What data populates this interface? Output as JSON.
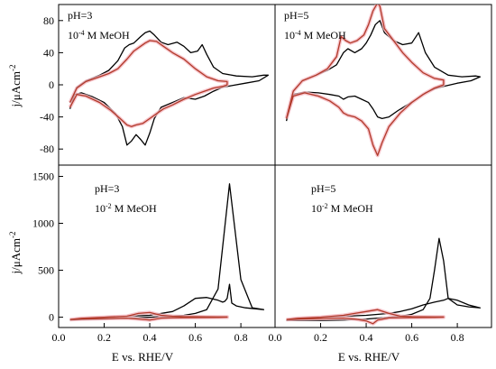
{
  "figure": {
    "ylabel_main": "j/μAcm",
    "ylabel_sup": "-2",
    "xlabel": "E vs. RHE/V"
  },
  "colors": {
    "black": "#000000",
    "red": "#b23a2a",
    "halo": "#f4b6bf"
  },
  "chart_data": [
    {
      "type": "line",
      "panel": "top-left",
      "annotation_line1": "pH=3",
      "annotation_line2_base": "10",
      "annotation_line2_exp": "-4",
      "annotation_line2_rest": " M MeOH",
      "xlim": [
        0.0,
        0.95
      ],
      "ylim": [
        -100,
        100
      ],
      "yticks": [
        -80,
        -40,
        0,
        40,
        80
      ],
      "series": [
        {
          "color": "black",
          "x": [
            0.05,
            0.08,
            0.12,
            0.18,
            0.22,
            0.26,
            0.29,
            0.31,
            0.33,
            0.36,
            0.38,
            0.4,
            0.42,
            0.45,
            0.48,
            0.52,
            0.55,
            0.58,
            0.61,
            0.63,
            0.65,
            0.68,
            0.72,
            0.78,
            0.85,
            0.9,
            0.92,
            0.88,
            0.82,
            0.76,
            0.72,
            0.68,
            0.64,
            0.6,
            0.55,
            0.5,
            0.45,
            0.42,
            0.4,
            0.38,
            0.36,
            0.34,
            0.32,
            0.3,
            0.28,
            0.25,
            0.2,
            0.15,
            0.1,
            0.07,
            0.05
          ],
          "y": [
            -22,
            -3,
            5,
            12,
            18,
            30,
            46,
            50,
            52,
            60,
            65,
            67,
            62,
            53,
            50,
            53,
            48,
            40,
            42,
            50,
            38,
            22,
            14,
            11,
            10,
            12,
            12,
            5,
            2,
            -1,
            -3,
            -8,
            -14,
            -18,
            -16,
            -22,
            -28,
            -42,
            -60,
            -75,
            -68,
            -62,
            -70,
            -75,
            -52,
            -36,
            -22,
            -15,
            -10,
            -12,
            -30
          ],
          "values_note": ""
        },
        {
          "color": "red",
          "x": [
            0.05,
            0.08,
            0.12,
            0.18,
            0.22,
            0.26,
            0.3,
            0.33,
            0.36,
            0.38,
            0.4,
            0.43,
            0.46,
            0.5,
            0.55,
            0.6,
            0.65,
            0.7,
            0.74,
            0.74,
            0.72,
            0.68,
            0.64,
            0.6,
            0.55,
            0.5,
            0.46,
            0.43,
            0.4,
            0.37,
            0.34,
            0.32,
            0.3,
            0.27,
            0.23,
            0.18,
            0.12,
            0.08,
            0.05
          ],
          "y": [
            -22,
            -4,
            4,
            10,
            14,
            20,
            32,
            42,
            48,
            52,
            55,
            54,
            48,
            40,
            32,
            20,
            10,
            5,
            4,
            0,
            -2,
            -4,
            -8,
            -12,
            -18,
            -25,
            -30,
            -36,
            -42,
            -48,
            -50,
            -52,
            -50,
            -42,
            -32,
            -22,
            -14,
            -12,
            -28
          ]
        }
      ]
    },
    {
      "type": "line",
      "panel": "top-right",
      "annotation_line1": "pH=5",
      "annotation_line2_base": "10",
      "annotation_line2_exp": "-4",
      "annotation_line2_rest": " M MeOH",
      "xlim": [
        0.0,
        0.95
      ],
      "ylim": [
        -100,
        100
      ],
      "series": [
        {
          "color": "black",
          "x": [
            0.05,
            0.08,
            0.12,
            0.18,
            0.23,
            0.27,
            0.3,
            0.32,
            0.35,
            0.38,
            0.4,
            0.42,
            0.44,
            0.46,
            0.48,
            0.52,
            0.56,
            0.6,
            0.63,
            0.66,
            0.7,
            0.76,
            0.82,
            0.88,
            0.9,
            0.86,
            0.8,
            0.74,
            0.7,
            0.66,
            0.62,
            0.58,
            0.54,
            0.5,
            0.47,
            0.45,
            0.43,
            0.41,
            0.38,
            0.35,
            0.32,
            0.3,
            0.28,
            0.24,
            0.19,
            0.13,
            0.08,
            0.05
          ],
          "y": [
            -45,
            -8,
            5,
            12,
            18,
            25,
            40,
            45,
            40,
            45,
            52,
            62,
            75,
            80,
            65,
            55,
            50,
            52,
            65,
            40,
            22,
            12,
            10,
            11,
            10,
            5,
            2,
            -2,
            -5,
            -10,
            -18,
            -25,
            -32,
            -40,
            -42,
            -40,
            -30,
            -22,
            -18,
            -14,
            -15,
            -18,
            -14,
            -12,
            -10,
            -9,
            -12,
            -45
          ]
        },
        {
          "color": "red",
          "x": [
            0.05,
            0.08,
            0.12,
            0.18,
            0.23,
            0.27,
            0.29,
            0.31,
            0.33,
            0.36,
            0.39,
            0.41,
            0.43,
            0.45,
            0.46,
            0.48,
            0.52,
            0.56,
            0.6,
            0.65,
            0.7,
            0.74,
            0.74,
            0.7,
            0.65,
            0.6,
            0.55,
            0.5,
            0.47,
            0.45,
            0.43,
            0.41,
            0.38,
            0.35,
            0.32,
            0.3,
            0.28,
            0.24,
            0.19,
            0.13,
            0.08,
            0.05
          ],
          "y": [
            -42,
            -8,
            5,
            12,
            20,
            35,
            60,
            55,
            52,
            55,
            62,
            75,
            92,
            102,
            98,
            70,
            55,
            40,
            28,
            15,
            8,
            6,
            0,
            -4,
            -12,
            -22,
            -35,
            -52,
            -72,
            -88,
            -75,
            -55,
            -45,
            -40,
            -38,
            -35,
            -28,
            -20,
            -14,
            -10,
            -14,
            -42
          ]
        }
      ]
    },
    {
      "type": "line",
      "panel": "bottom-left",
      "annotation_line1": "pH=3",
      "annotation_line2_base": "10",
      "annotation_line2_exp": "-2",
      "annotation_line2_rest": " M MeOH",
      "xlim": [
        0.0,
        0.95
      ],
      "ylim": [
        -110,
        1620
      ],
      "yticks": [
        0,
        500,
        1000,
        1500
      ],
      "xticks": [
        0.0,
        0.2,
        0.4,
        0.6,
        0.8
      ],
      "series": [
        {
          "color": "black",
          "x": [
            0.05,
            0.1,
            0.2,
            0.3,
            0.4,
            0.5,
            0.55,
            0.6,
            0.65,
            0.7,
            0.72,
            0.73,
            0.74,
            0.75,
            0.76,
            0.78,
            0.82,
            0.86,
            0.9,
            0.85,
            0.8,
            0.75,
            0.7,
            0.65,
            0.6,
            0.55,
            0.5,
            0.45,
            0.4,
            0.3,
            0.2,
            0.1,
            0.05
          ],
          "y": [
            -30,
            -15,
            0,
            10,
            20,
            60,
            120,
            200,
            210,
            180,
            160,
            170,
            200,
            350,
            150,
            120,
            100,
            90,
            80,
            100,
            400,
            1420,
            300,
            80,
            40,
            20,
            10,
            5,
            0,
            -10,
            -20,
            -25,
            -30
          ]
        },
        {
          "color": "red",
          "x": [
            0.05,
            0.1,
            0.2,
            0.3,
            0.35,
            0.4,
            0.45,
            0.5,
            0.55,
            0.6,
            0.65,
            0.7,
            0.74,
            0.74,
            0.7,
            0.6,
            0.5,
            0.45,
            0.4,
            0.35,
            0.3,
            0.2,
            0.1,
            0.05
          ],
          "y": [
            -25,
            -12,
            0,
            10,
            40,
            50,
            20,
            10,
            5,
            5,
            3,
            2,
            2,
            0,
            -2,
            -4,
            -6,
            -10,
            -30,
            -20,
            -10,
            -15,
            -20,
            -25
          ]
        }
      ]
    },
    {
      "type": "line",
      "panel": "bottom-right",
      "annotation_line1": "pH=5",
      "annotation_line2_base": "10",
      "annotation_line2_exp": "-2",
      "annotation_line2_rest": " M MeOH",
      "xlim": [
        0.0,
        0.95
      ],
      "ylim": [
        -110,
        1620
      ],
      "xticks": [
        0.0,
        0.2,
        0.4,
        0.6,
        0.8
      ],
      "series": [
        {
          "color": "black",
          "x": [
            0.05,
            0.1,
            0.2,
            0.3,
            0.4,
            0.5,
            0.55,
            0.6,
            0.65,
            0.7,
            0.74,
            0.76,
            0.8,
            0.85,
            0.9,
            0.85,
            0.8,
            0.76,
            0.74,
            0.72,
            0.7,
            0.68,
            0.65,
            0.6,
            0.55,
            0.5,
            0.45,
            0.4,
            0.3,
            0.2,
            0.1,
            0.05
          ],
          "y": [
            -35,
            -20,
            0,
            10,
            20,
            40,
            60,
            90,
            130,
            160,
            180,
            200,
            180,
            130,
            100,
            110,
            130,
            200,
            600,
            840,
            500,
            200,
            80,
            30,
            10,
            0,
            -10,
            -20,
            -30,
            -35,
            -35,
            -35
          ]
        },
        {
          "color": "red",
          "x": [
            0.05,
            0.1,
            0.2,
            0.3,
            0.35,
            0.4,
            0.45,
            0.5,
            0.55,
            0.6,
            0.65,
            0.7,
            0.74,
            0.74,
            0.7,
            0.6,
            0.5,
            0.45,
            0.43,
            0.4,
            0.35,
            0.3,
            0.2,
            0.1,
            0.05
          ],
          "y": [
            -25,
            -12,
            0,
            20,
            40,
            60,
            80,
            40,
            10,
            5,
            3,
            2,
            2,
            0,
            -2,
            -4,
            -8,
            -30,
            -70,
            -40,
            -20,
            -10,
            -15,
            -20,
            -25
          ]
        }
      ]
    }
  ]
}
